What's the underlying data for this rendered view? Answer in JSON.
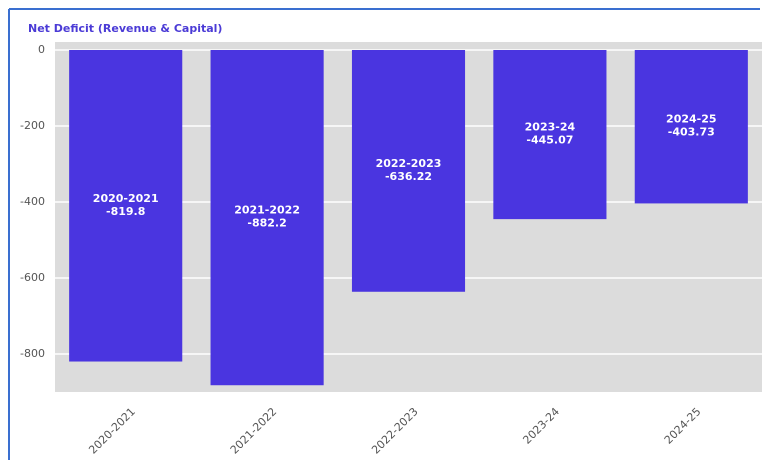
{
  "chart_data": {
    "type": "bar",
    "title": "Net Deficit (Revenue & Capital)",
    "categories": [
      "2020-2021",
      "2021-2022",
      "2022-2023",
      "2023-24",
      "2024-25"
    ],
    "values": [
      -819.8,
      -882.2,
      -636.22,
      -445.07,
      -403.73
    ],
    "color": "#4a35e0",
    "ylim": [
      -900,
      0
    ],
    "yticks": [
      0,
      -200,
      -400,
      -600,
      -800
    ],
    "grid": true
  }
}
